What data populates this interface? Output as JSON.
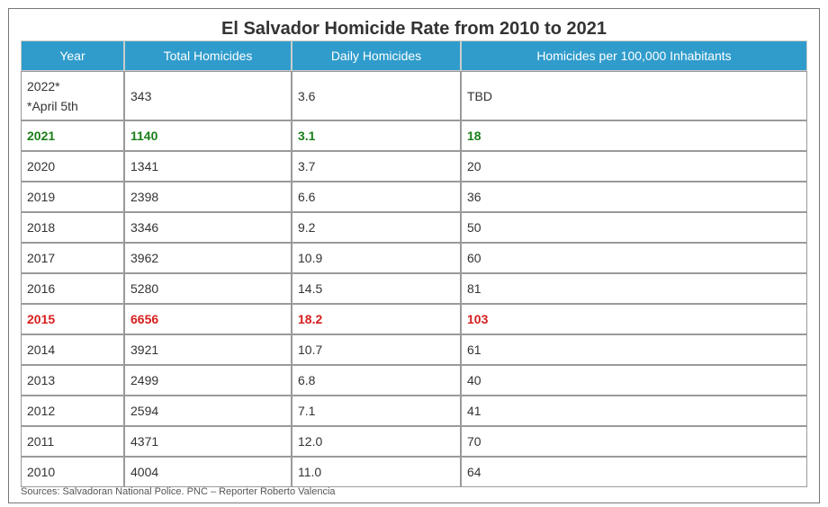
{
  "title": "El Salvador Homicide Rate from 2010 to 2021",
  "colors": {
    "header_bg": "#2f9ccc",
    "highlight_low": "#1a7f1a",
    "highlight_high": "#d81e1e"
  },
  "chart_data": {
    "type": "table",
    "title": "El Salvador Homicide Rate from 2010 to 2021",
    "columns": [
      "Year",
      "Total Homicides",
      "Daily Homicides",
      "Homicides per 100,000 Inhabitants"
    ],
    "rows": [
      {
        "year": "2022*",
        "year_note": "*April 5th",
        "total": "343",
        "daily": "3.6",
        "per100k": "TBD",
        "highlight": ""
      },
      {
        "year": "2021",
        "total": "1140",
        "daily": "3.1",
        "per100k": "18",
        "highlight": "green"
      },
      {
        "year": "2020",
        "total": "1341",
        "daily": "3.7",
        "per100k": "20",
        "highlight": ""
      },
      {
        "year": "2019",
        "total": "2398",
        "daily": "6.6",
        "per100k": "36",
        "highlight": ""
      },
      {
        "year": "2018",
        "total": "3346",
        "daily": "9.2",
        "per100k": "50",
        "highlight": ""
      },
      {
        "year": "2017",
        "total": "3962",
        "daily": "10.9",
        "per100k": "60",
        "highlight": ""
      },
      {
        "year": "2016",
        "total": "5280",
        "daily": "14.5",
        "per100k": "81",
        "highlight": ""
      },
      {
        "year": "2015",
        "total": "6656",
        "daily": "18.2",
        "per100k": "103",
        "highlight": "red"
      },
      {
        "year": "2014",
        "total": "3921",
        "daily": "10.7",
        "per100k": "61",
        "highlight": ""
      },
      {
        "year": "2013",
        "total": "2499",
        "daily": "6.8",
        "per100k": "40",
        "highlight": ""
      },
      {
        "year": "2012",
        "total": "2594",
        "daily": "7.1",
        "per100k": "41",
        "highlight": ""
      },
      {
        "year": "2011",
        "total": "4371",
        "daily": "12.0",
        "per100k": "70",
        "highlight": ""
      },
      {
        "year": "2010",
        "total": "4004",
        "daily": "11.0",
        "per100k": "64",
        "highlight": ""
      }
    ],
    "source": "Sources: Salvadoran National Police. PNC – Reporter Roberto Valencia"
  }
}
